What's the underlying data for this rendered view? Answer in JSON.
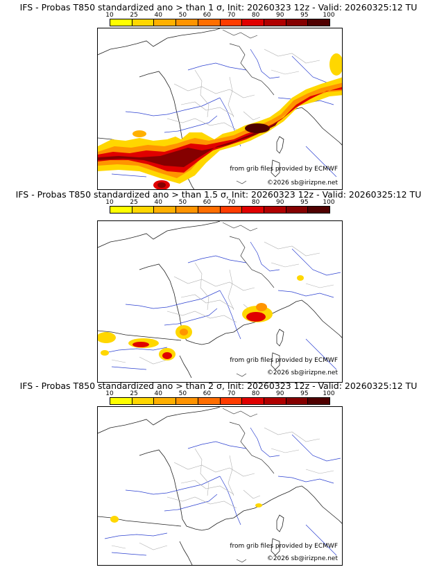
{
  "colorbar": {
    "ticks": [
      "10",
      "25",
      "40",
      "50",
      "60",
      "70",
      "80",
      "90",
      "95",
      "100"
    ],
    "colors": [
      "#ffff00",
      "#ffd700",
      "#ffb000",
      "#ff9400",
      "#ff6e00",
      "#ff3c00",
      "#e00000",
      "#b00000",
      "#850000",
      "#500000"
    ]
  },
  "panels": [
    {
      "title": "IFS - Probas T850  standardized ano > than 1 σ, Init: 20260323 12z - Valid: 20260325:12 TU",
      "credit_grib": "from grib files provided by ECMWF",
      "credit_copy": "©2026 sb@irizpne.net"
    },
    {
      "title": "IFS - Probas T850  standardized ano > than 1.5 σ, Init: 20260323 12z - Valid: 20260325:12 TU",
      "credit_grib": "from grib files provided by ECMWF",
      "credit_copy": "©2026 sb@irizpne.net"
    },
    {
      "title": "IFS - Probas T850  standardized ano > than 2 σ, Init: 20260323 12z - Valid: 20260325:12 TU",
      "credit_grib": "from grib files provided by ECMWF",
      "credit_copy": "©2026 sb@irizpne.net"
    }
  ]
}
